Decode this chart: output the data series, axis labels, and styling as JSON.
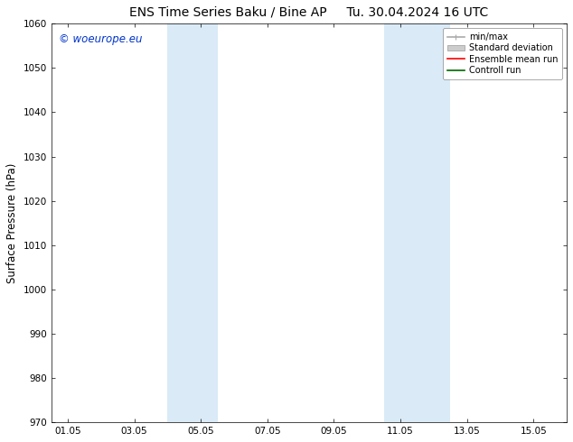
{
  "title_left": "ENS Time Series Baku / Bine AP",
  "title_right": "Tu. 30.04.2024 16 UTC",
  "ylabel": "Surface Pressure (hPa)",
  "ylim": [
    970,
    1060
  ],
  "yticks": [
    970,
    980,
    990,
    1000,
    1010,
    1020,
    1030,
    1040,
    1050,
    1060
  ],
  "xtick_labels": [
    "01.05",
    "03.05",
    "05.05",
    "07.05",
    "09.05",
    "11.05",
    "13.05",
    "15.05"
  ],
  "xtick_positions": [
    1,
    3,
    5,
    7,
    9,
    11,
    13,
    15
  ],
  "xlim": [
    0.5,
    16.0
  ],
  "shaded_bands": [
    {
      "x_start": 4.0,
      "x_end": 5.5
    },
    {
      "x_start": 10.5,
      "x_end": 12.5
    }
  ],
  "shaded_color": "#daeaf7",
  "shaded_alpha": 1.0,
  "background_color": "#ffffff",
  "plot_bg_color": "#ffffff",
  "watermark_text": "© woeurope.eu",
  "watermark_color": "#0033cc",
  "legend_items": [
    {
      "label": "min/max",
      "color": "#aaaaaa",
      "linewidth": 1.2,
      "linestyle": "-"
    },
    {
      "label": "Standard deviation",
      "color": "#cccccc",
      "linewidth": 7,
      "linestyle": "-"
    },
    {
      "label": "Ensemble mean run",
      "color": "#ff0000",
      "linewidth": 1.2,
      "linestyle": "-"
    },
    {
      "label": "Controll run",
      "color": "#006600",
      "linewidth": 1.2,
      "linestyle": "-"
    }
  ],
  "title_fontsize": 10,
  "tick_fontsize": 7.5,
  "ylabel_fontsize": 8.5,
  "legend_fontsize": 7.0,
  "watermark_fontsize": 8.5
}
